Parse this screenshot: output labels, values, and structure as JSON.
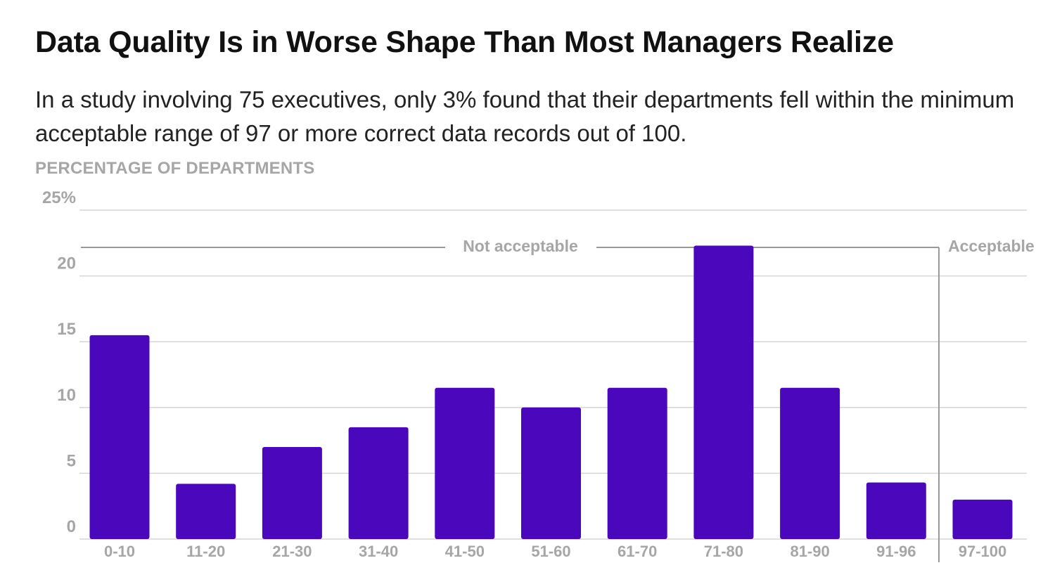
{
  "title": "Data Quality Is in Worse Shape Than Most Managers Realize",
  "subtitle": "In a study involving 75 executives, only 3% found that their departments fell within the minimum acceptable range of 97 or more correct data records out of 100.",
  "chart_data": {
    "type": "bar",
    "title": "Data Quality Is in Worse Shape Than Most Managers Realize",
    "subtitle": "In a study involving 75 executives, only 3% found that their departments fell within the minimum acceptable range of 97 or more correct data records out of 100.",
    "xlabel": "",
    "ylabel": "PERCENTAGE OF DEPARTMENTS",
    "categories": [
      "0-10",
      "11-20",
      "21-30",
      "31-40",
      "41-50",
      "51-60",
      "61-70",
      "71-80",
      "81-90",
      "91-96",
      "97-100"
    ],
    "values": [
      15.5,
      4.2,
      7.0,
      8.5,
      11.5,
      10.0,
      11.5,
      22.3,
      11.5,
      4.3,
      3.0
    ],
    "ylim": [
      0,
      25
    ],
    "yticks": [
      0,
      5,
      10,
      15,
      20,
      25
    ],
    "ytick_labels": [
      "0",
      "5",
      "10",
      "15",
      "20",
      "25%"
    ],
    "grid": true,
    "bar_color": "#4a07bc",
    "grid_color": "#d6d6d6",
    "label_color": "#a6a6a6",
    "annotations": [
      {
        "text": "Not acceptable",
        "range": [
          "0-10",
          "91-96"
        ]
      },
      {
        "text": "Acceptable",
        "range": [
          "97-100",
          "97-100"
        ]
      }
    ]
  }
}
